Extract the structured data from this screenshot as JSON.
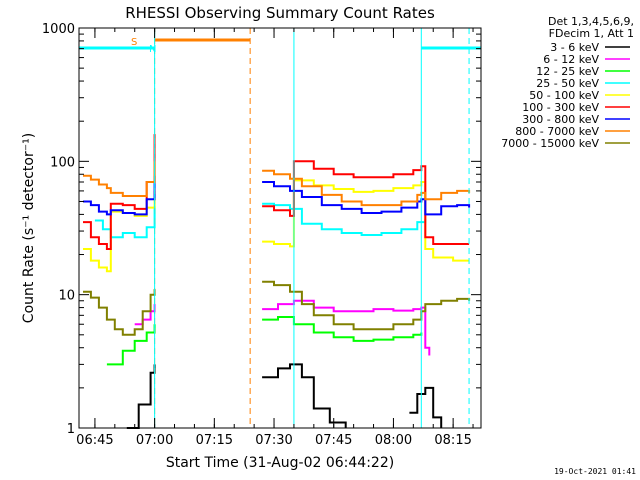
{
  "chart_data": {
    "type": "line",
    "title": "RHESSI Observing Summary Count Rates",
    "xlabel": "Start Time (31-Aug-02 06:44:22)",
    "ylabel": "Count Rate (s⁻¹ detector⁻¹)",
    "yscale": "log",
    "ylim": [
      1,
      1000
    ],
    "xlim": [
      "06:41",
      "08:22"
    ],
    "y_ticks": [
      "1",
      "10",
      "100",
      "1000"
    ],
    "x_ticks": [
      "06:45",
      "07:00",
      "07:15",
      "07:30",
      "07:45",
      "08:00",
      "08:15"
    ],
    "timestamp": "19-Oct-2021 01:41",
    "legend_position": "top-right",
    "legend_header": [
      "Det 1,3,4,5,6,9,",
      "FDecim 1, Att 1"
    ],
    "markers": {
      "saa_label": "S",
      "night_label": "N",
      "saa_color": "#ff8000",
      "night_color": "#00ffff",
      "saa_bar": {
        "start": "07:00",
        "end": "07:24"
      },
      "night_bars": [
        {
          "start": "06:41",
          "end": "07:00"
        },
        {
          "start": "08:07",
          "end": "08:22"
        }
      ],
      "vlines": [
        {
          "time": "07:00",
          "color": "#ff8000",
          "style": "dashed"
        },
        {
          "time": "07:00",
          "color": "#00ffff",
          "style": "solid"
        },
        {
          "time": "07:24",
          "color": "#ff8000",
          "style": "dashed"
        },
        {
          "time": "07:35",
          "color": "#00ffff",
          "style": "solid"
        },
        {
          "time": "08:07",
          "color": "#00ffff",
          "style": "solid"
        },
        {
          "time": "08:19",
          "color": "#00ffff",
          "style": "dashed"
        }
      ]
    },
    "series": [
      {
        "name": "3 - 6 keV",
        "color": "#000000",
        "points": [
          [
            "06:53",
            1.0
          ],
          [
            "06:56",
            1.5
          ],
          [
            "06:59",
            2.6
          ],
          [
            "07:00",
            3.0
          ],
          [
            "07:27",
            2.4
          ],
          [
            "07:31",
            2.8
          ],
          [
            "07:34",
            3.0
          ],
          [
            "07:37",
            2.4
          ],
          [
            "07:40",
            1.4
          ],
          [
            "07:44",
            1.1
          ],
          [
            "07:48",
            1.0
          ],
          [
            "08:04",
            1.3
          ],
          [
            "08:06",
            1.8
          ],
          [
            "08:08",
            2.0
          ],
          [
            "08:10",
            1.2
          ],
          [
            "08:12",
            1.0
          ]
        ]
      },
      {
        "name": "6 - 12 keV",
        "color": "#ff00ff",
        "points": [
          [
            "06:55",
            6.0
          ],
          [
            "06:57",
            6.5
          ],
          [
            "06:59",
            7.5
          ],
          [
            "07:00",
            8.5
          ],
          [
            "07:27",
            7.8
          ],
          [
            "07:31",
            8.5
          ],
          [
            "07:35",
            9.0
          ],
          [
            "07:40",
            8.0
          ],
          [
            "07:45",
            7.5
          ],
          [
            "07:50",
            7.5
          ],
          [
            "07:55",
            7.8
          ],
          [
            "08:00",
            7.6
          ],
          [
            "08:05",
            7.8
          ],
          [
            "08:07",
            8.0
          ],
          [
            "08:08",
            4.0
          ],
          [
            "08:09",
            3.5
          ]
        ]
      },
      {
        "name": "12 - 25 keV",
        "color": "#00ff00",
        "points": [
          [
            "06:48",
            3.0
          ],
          [
            "06:52",
            3.8
          ],
          [
            "06:55",
            4.5
          ],
          [
            "06:58",
            5.2
          ],
          [
            "07:00",
            6.0
          ],
          [
            "07:27",
            6.5
          ],
          [
            "07:31",
            6.8
          ],
          [
            "07:35",
            6.0
          ],
          [
            "07:40",
            5.2
          ],
          [
            "07:45",
            4.8
          ],
          [
            "07:50",
            4.5
          ],
          [
            "07:55",
            4.6
          ],
          [
            "08:00",
            4.8
          ],
          [
            "08:05",
            5.0
          ],
          [
            "08:07",
            5.2
          ]
        ]
      },
      {
        "name": "25 - 50 keV",
        "color": "#00ffff",
        "points": [
          [
            "06:45",
            36
          ],
          [
            "06:47",
            31
          ],
          [
            "06:49",
            27
          ],
          [
            "06:52",
            29
          ],
          [
            "06:55",
            27
          ],
          [
            "06:58",
            32
          ],
          [
            "07:00",
            46
          ],
          [
            "07:27",
            48
          ],
          [
            "07:30",
            47
          ],
          [
            "07:34",
            44
          ],
          [
            "07:37",
            34
          ],
          [
            "07:42",
            31
          ],
          [
            "07:47",
            29
          ],
          [
            "07:52",
            28
          ],
          [
            "07:57",
            29
          ],
          [
            "08:02",
            31
          ],
          [
            "08:06",
            35
          ],
          [
            "08:08",
            37
          ]
        ]
      },
      {
        "name": "50 - 100 keV",
        "color": "#ffff00",
        "points": [
          [
            "06:42",
            22
          ],
          [
            "06:44",
            18
          ],
          [
            "06:46",
            16
          ],
          [
            "06:48",
            15
          ],
          [
            "06:49",
            42
          ],
          [
            "06:52",
            41
          ],
          [
            "06:55",
            39
          ],
          [
            "06:58",
            45
          ],
          [
            "07:00",
            60
          ],
          [
            "07:27",
            25
          ],
          [
            "07:30",
            24
          ],
          [
            "07:34",
            23
          ],
          [
            "07:35",
            72
          ],
          [
            "07:40",
            66
          ],
          [
            "07:45",
            62
          ],
          [
            "07:50",
            59
          ],
          [
            "07:55",
            60
          ],
          [
            "08:00",
            63
          ],
          [
            "08:05",
            66
          ],
          [
            "08:07",
            70
          ],
          [
            "08:08",
            22
          ],
          [
            "08:10",
            19
          ],
          [
            "08:15",
            18
          ],
          [
            "08:19",
            18
          ]
        ]
      },
      {
        "name": "100 - 300 keV",
        "color": "#ff0000",
        "points": [
          [
            "06:42",
            35
          ],
          [
            "06:44",
            27
          ],
          [
            "06:46",
            24
          ],
          [
            "06:48",
            22
          ],
          [
            "06:49",
            48
          ],
          [
            "06:52",
            47
          ],
          [
            "06:55",
            44
          ],
          [
            "06:58",
            70
          ],
          [
            "07:00",
            160
          ],
          [
            "07:27",
            46
          ],
          [
            "07:30",
            43
          ],
          [
            "07:34",
            39
          ],
          [
            "07:35",
            100
          ],
          [
            "07:40",
            88
          ],
          [
            "07:45",
            80
          ],
          [
            "07:50",
            76
          ],
          [
            "07:55",
            76
          ],
          [
            "08:00",
            80
          ],
          [
            "08:05",
            86
          ],
          [
            "08:07",
            92
          ],
          [
            "08:08",
            27
          ],
          [
            "08:10",
            24
          ],
          [
            "08:15",
            24
          ],
          [
            "08:19",
            24
          ]
        ]
      },
      {
        "name": "300 - 800 keV",
        "color": "#0000ff",
        "points": [
          [
            "06:42",
            50
          ],
          [
            "06:44",
            47
          ],
          [
            "06:46",
            42
          ],
          [
            "06:48",
            40
          ],
          [
            "06:49",
            43
          ],
          [
            "06:52",
            41
          ],
          [
            "06:55",
            40
          ],
          [
            "06:58",
            52
          ],
          [
            "07:00",
            78
          ],
          [
            "07:27",
            70
          ],
          [
            "07:30",
            65
          ],
          [
            "07:34",
            60
          ],
          [
            "07:37",
            54
          ],
          [
            "07:42",
            47
          ],
          [
            "07:47",
            44
          ],
          [
            "07:52",
            41
          ],
          [
            "07:57",
            42
          ],
          [
            "08:02",
            45
          ],
          [
            "08:06",
            50
          ],
          [
            "08:07",
            52
          ],
          [
            "08:08",
            40
          ],
          [
            "08:12",
            46
          ],
          [
            "08:16",
            47
          ],
          [
            "08:19",
            45
          ]
        ]
      },
      {
        "name": "800 - 7000 keV",
        "color": "#ff8000",
        "points": [
          [
            "06:42",
            78
          ],
          [
            "06:44",
            73
          ],
          [
            "06:46",
            67
          ],
          [
            "06:48",
            63
          ],
          [
            "06:49",
            58
          ],
          [
            "06:52",
            55
          ],
          [
            "06:55",
            55
          ],
          [
            "06:58",
            70
          ],
          [
            "07:00",
            100
          ],
          [
            "07:27",
            85
          ],
          [
            "07:30",
            80
          ],
          [
            "07:34",
            74
          ],
          [
            "07:37",
            65
          ],
          [
            "07:42",
            56
          ],
          [
            "07:47",
            50
          ],
          [
            "07:52",
            47
          ],
          [
            "07:57",
            47
          ],
          [
            "08:02",
            50
          ],
          [
            "08:06",
            56
          ],
          [
            "08:07",
            58
          ],
          [
            "08:08",
            52
          ],
          [
            "08:12",
            58
          ],
          [
            "08:16",
            60
          ],
          [
            "08:19",
            58
          ]
        ]
      },
      {
        "name": "7000 - 15000 keV",
        "color": "#808000",
        "points": [
          [
            "06:42",
            10.5
          ],
          [
            "06:44",
            9.5
          ],
          [
            "06:46",
            8.0
          ],
          [
            "06:48",
            6.5
          ],
          [
            "06:50",
            5.5
          ],
          [
            "06:52",
            5.0
          ],
          [
            "06:55",
            5.5
          ],
          [
            "06:57",
            7.5
          ],
          [
            "06:59",
            10.0
          ],
          [
            "07:00",
            11.0
          ],
          [
            "07:27",
            12.5
          ],
          [
            "07:30",
            11.8
          ],
          [
            "07:34",
            10.5
          ],
          [
            "07:37",
            8.5
          ],
          [
            "07:40",
            7.0
          ],
          [
            "07:45",
            6.0
          ],
          [
            "07:50",
            5.5
          ],
          [
            "07:55",
            5.5
          ],
          [
            "08:00",
            6.0
          ],
          [
            "08:05",
            6.5
          ],
          [
            "08:07",
            7.5
          ],
          [
            "08:08",
            8.5
          ],
          [
            "08:12",
            9.0
          ],
          [
            "08:16",
            9.3
          ],
          [
            "08:19",
            9.0
          ]
        ]
      }
    ]
  }
}
